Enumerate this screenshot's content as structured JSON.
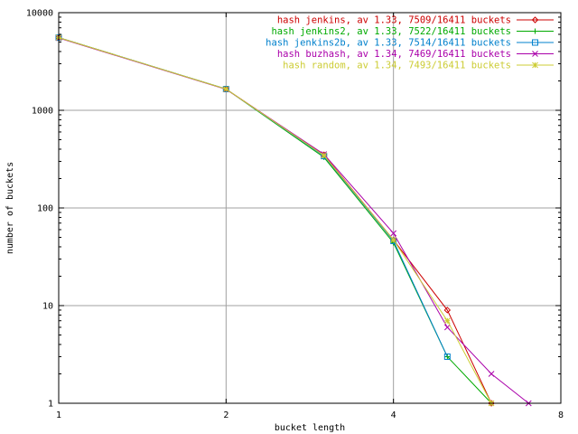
{
  "chart_data": {
    "type": "line",
    "title": "",
    "xlabel": "bucket length",
    "ylabel": "number of buckets",
    "x_scale": "log2",
    "y_scale": "log10",
    "xlim": [
      1,
      8
    ],
    "ylim": [
      1,
      10000
    ],
    "grid": true,
    "legend_position": "top-right",
    "x_ticks": [
      {
        "value": 1,
        "label": "1"
      },
      {
        "value": 2,
        "label": "2"
      },
      {
        "value": 4,
        "label": "4"
      },
      {
        "value": 8,
        "label": "8"
      }
    ],
    "y_ticks": [
      {
        "value": 1,
        "label": "1"
      },
      {
        "value": 10,
        "label": "10"
      },
      {
        "value": 100,
        "label": "100"
      },
      {
        "value": 1000,
        "label": "1000"
      },
      {
        "value": 10000,
        "label": "10000"
      }
    ],
    "series": [
      {
        "name": "hash jenkins, av 1.33, 7509/16411 buckets",
        "color": "#cc0000",
        "marker": "diamond",
        "x": [
          1,
          2,
          3,
          4,
          5,
          6
        ],
        "y": [
          5550,
          1650,
          350,
          47,
          9,
          1
        ]
      },
      {
        "name": "hash jenkins2, av 1.33, 7522/16411 buckets",
        "color": "#00aa00",
        "marker": "plus",
        "x": [
          1,
          2,
          3,
          4,
          5,
          6
        ],
        "y": [
          5550,
          1650,
          330,
          44,
          3,
          1
        ]
      },
      {
        "name": "hash jenkins2b, av 1.33, 7514/16411 buckets",
        "color": "#0080cc",
        "marker": "square",
        "x": [
          1,
          2,
          3,
          4,
          5
        ],
        "y": [
          5550,
          1650,
          340,
          46,
          3
        ]
      },
      {
        "name": "hash buzhash, av 1.34, 7469/16411 buckets",
        "color": "#aa00aa",
        "marker": "cross",
        "x": [
          1,
          2,
          3,
          4,
          5,
          6,
          7
        ],
        "y": [
          5500,
          1640,
          355,
          55,
          6,
          2,
          1
        ]
      },
      {
        "name": "hash random, av 1.34, 7493/16411 buckets",
        "color": "#cccc33",
        "marker": "star",
        "x": [
          1,
          2,
          3,
          4,
          5,
          6
        ],
        "y": [
          5550,
          1650,
          345,
          47,
          7,
          1
        ]
      }
    ]
  }
}
